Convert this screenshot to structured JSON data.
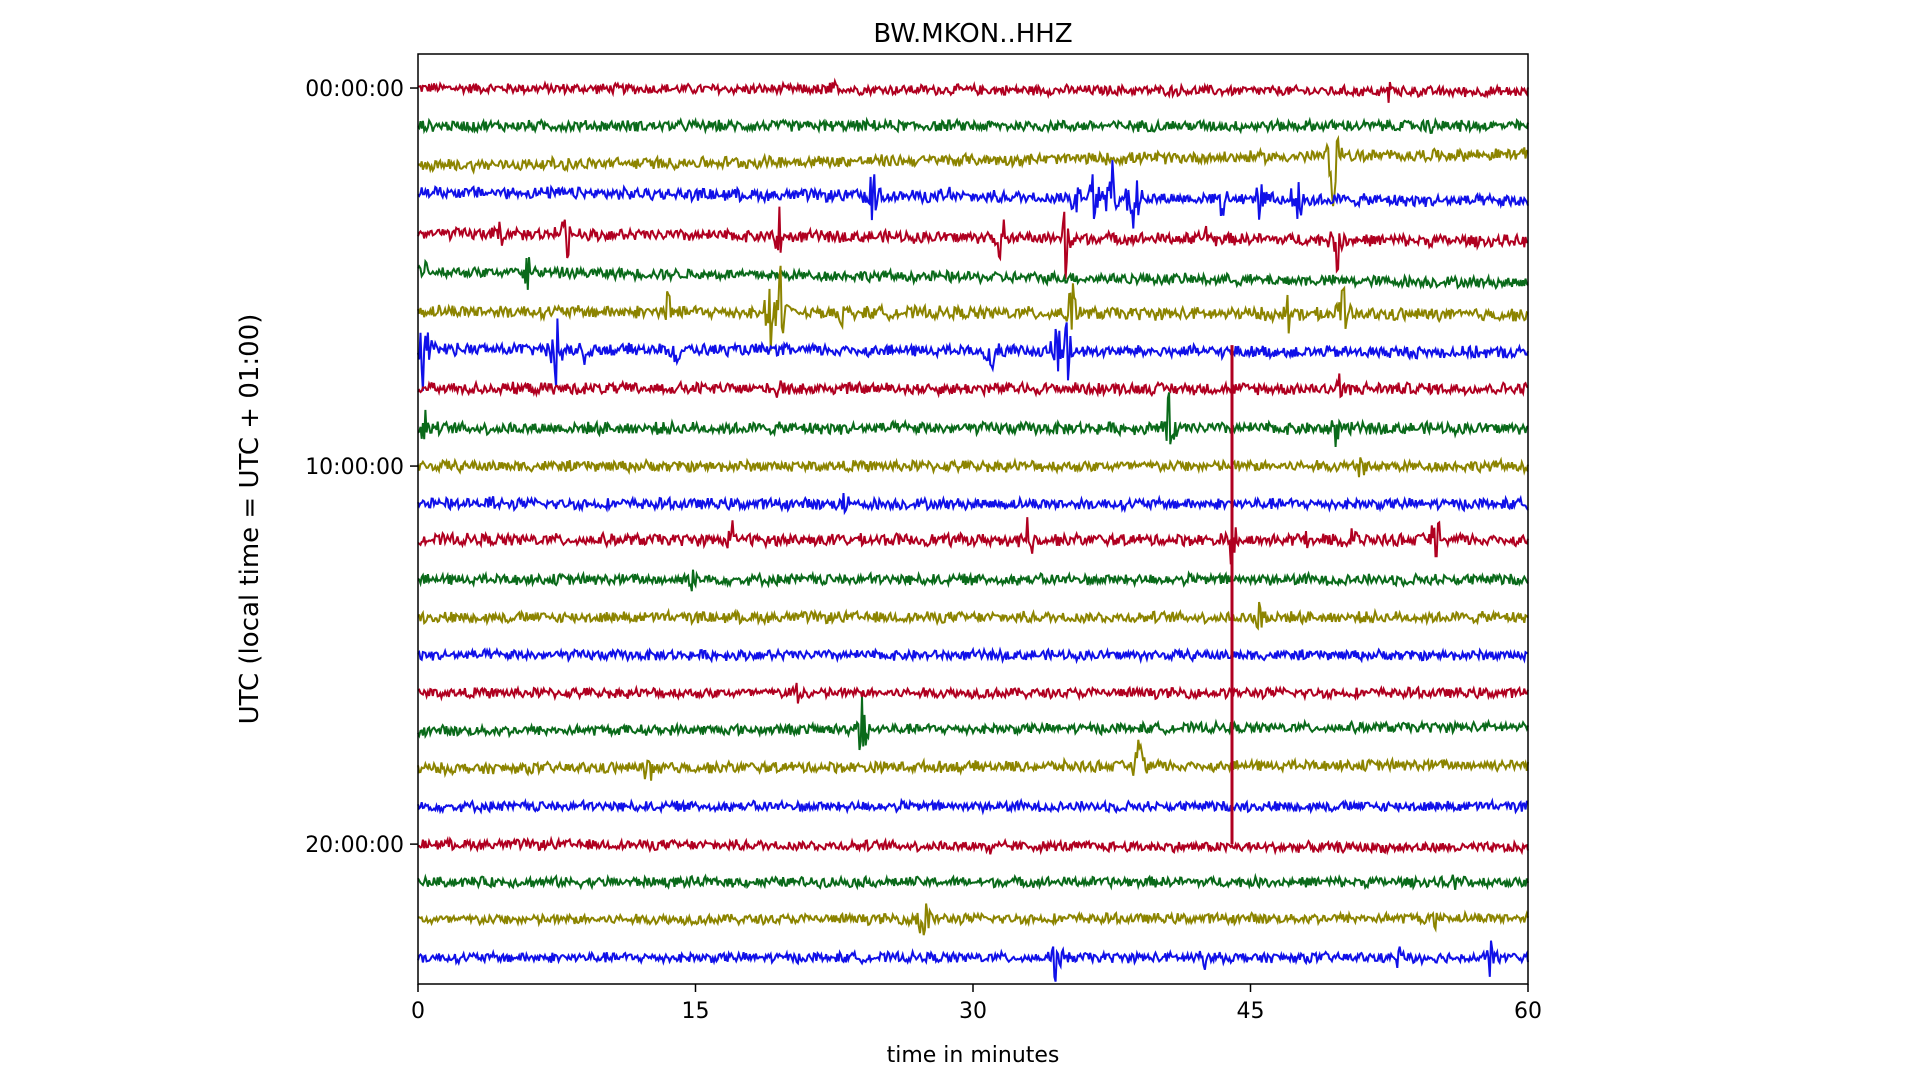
{
  "chart_data": {
    "type": "line",
    "title": "BW.MKON..HHZ",
    "xlabel": "time in minutes",
    "ylabel": "UTC (local time = UTC + 01:00)",
    "xlim": [
      0,
      60
    ],
    "x_ticks": [
      0,
      15,
      30,
      45,
      60
    ],
    "y_ticks": [
      {
        "hour": 0,
        "label": "00:00:00"
      },
      {
        "hour": 10,
        "label": "10:00:00"
      },
      {
        "hour": 20,
        "label": "20:00:00"
      }
    ],
    "ylim_hours": [
      -0.9,
      23.7
    ],
    "colors": [
      "#b00020",
      "#0a6a1a",
      "#8c8400",
      "#1010e8"
    ],
    "traces": [
      {
        "hour": 0,
        "color_index": 0,
        "offset": 0.0,
        "drift": -0.1,
        "noise": 0.12,
        "events": [
          {
            "minute": 22.4,
            "amp": 0.25
          },
          {
            "minute": 52.5,
            "amp": 0.35
          }
        ]
      },
      {
        "hour": 1,
        "color_index": 1,
        "offset": 0.0,
        "drift": 0.0,
        "noise": 0.13,
        "events": [
          {
            "minute": 55.0,
            "amp": 0.3
          }
        ]
      },
      {
        "hour": 2,
        "color_index": 2,
        "offset": -0.05,
        "drift": 0.3,
        "noise": 0.14,
        "events": [
          {
            "minute": 49.5,
            "amp": 1.6
          }
        ]
      },
      {
        "hour": 3,
        "color_index": 3,
        "offset": 0.25,
        "drift": -0.25,
        "noise": 0.14,
        "events": [
          {
            "minute": 24.6,
            "amp": 0.9
          },
          {
            "minute": 28.5,
            "amp": 0.5
          },
          {
            "minute": 35.5,
            "amp": 0.9
          },
          {
            "minute": 36.5,
            "amp": 1.0
          },
          {
            "minute": 37.5,
            "amp": 1.1
          },
          {
            "minute": 38.7,
            "amp": 1.3
          },
          {
            "minute": 43.5,
            "amp": 0.6
          },
          {
            "minute": 45.5,
            "amp": 0.8
          },
          {
            "minute": 47.5,
            "amp": 0.9
          }
        ]
      },
      {
        "hour": 4,
        "color_index": 0,
        "offset": 0.15,
        "drift": -0.2,
        "noise": 0.14,
        "events": [
          {
            "minute": 4.5,
            "amp": 0.5
          },
          {
            "minute": 8.0,
            "amp": 0.9
          },
          {
            "minute": 19.5,
            "amp": 0.8
          },
          {
            "minute": 31.5,
            "amp": 0.9
          },
          {
            "minute": 35.0,
            "amp": 1.2
          },
          {
            "minute": 42.5,
            "amp": 0.7
          },
          {
            "minute": 49.7,
            "amp": 1.0
          }
        ]
      },
      {
        "hour": 5,
        "color_index": 1,
        "offset": 0.15,
        "drift": -0.3,
        "noise": 0.13,
        "events": [
          {
            "minute": 6.0,
            "amp": 0.7
          },
          {
            "minute": 0.2,
            "amp": 0.5
          }
        ]
      },
      {
        "hour": 6,
        "color_index": 2,
        "offset": 0.1,
        "drift": -0.1,
        "noise": 0.15,
        "events": [
          {
            "minute": 13.5,
            "amp": 0.7
          },
          {
            "minute": 19.0,
            "amp": 1.3
          },
          {
            "minute": 19.6,
            "amp": 1.5
          },
          {
            "minute": 23.0,
            "amp": 0.5
          },
          {
            "minute": 35.3,
            "amp": 1.2
          },
          {
            "minute": 47.0,
            "amp": 0.7
          },
          {
            "minute": 50.0,
            "amp": 1.1
          }
        ]
      },
      {
        "hour": 7,
        "color_index": 3,
        "offset": 0.1,
        "drift": -0.1,
        "noise": 0.14,
        "events": [
          {
            "minute": 0.3,
            "amp": 1.6
          },
          {
            "minute": 7.5,
            "amp": 1.3
          },
          {
            "minute": 9.0,
            "amp": 0.6
          },
          {
            "minute": 14.0,
            "amp": 0.4
          },
          {
            "minute": 31.0,
            "amp": 0.9
          },
          {
            "minute": 34.5,
            "amp": 1.3
          },
          {
            "minute": 35.1,
            "amp": 1.2
          }
        ]
      },
      {
        "hour": 8,
        "color_index": 0,
        "offset": 0.05,
        "drift": 0.0,
        "noise": 0.14,
        "events": [
          {
            "minute": 19.5,
            "amp": 0.5
          },
          {
            "minute": 49.8,
            "amp": 0.5
          }
        ]
      },
      {
        "hour": 9,
        "color_index": 1,
        "offset": 0.0,
        "drift": 0.0,
        "noise": 0.14,
        "events": [
          {
            "minute": 0.4,
            "amp": 0.5
          },
          {
            "minute": 40.5,
            "amp": 1.3
          },
          {
            "minute": 49.6,
            "amp": 0.6
          }
        ]
      },
      {
        "hour": 10,
        "color_index": 2,
        "offset": 0.0,
        "drift": 0.0,
        "noise": 0.13,
        "events": [
          {
            "minute": 51.0,
            "amp": 0.3
          }
        ]
      },
      {
        "hour": 11,
        "color_index": 3,
        "offset": 0.0,
        "drift": 0.0,
        "noise": 0.13,
        "events": [
          {
            "minute": 4.0,
            "amp": 0.3
          },
          {
            "minute": 23.0,
            "amp": 0.3
          }
        ]
      },
      {
        "hour": 12,
        "color_index": 0,
        "offset": 0.05,
        "drift": 0.0,
        "noise": 0.14,
        "events": [
          {
            "minute": 17.0,
            "amp": 0.6
          },
          {
            "minute": 33.0,
            "amp": 0.7
          },
          {
            "minute": 44.0,
            "amp": 1.0
          },
          {
            "minute": 48.0,
            "amp": 0.5
          },
          {
            "minute": 50.5,
            "amp": 0.5
          },
          {
            "minute": 55.0,
            "amp": 1.0
          }
        ]
      },
      {
        "hour": 13,
        "color_index": 1,
        "offset": 0.0,
        "drift": 0.0,
        "noise": 0.13,
        "events": [
          {
            "minute": 14.8,
            "amp": 0.5
          }
        ]
      },
      {
        "hour": 14,
        "color_index": 2,
        "offset": 0.0,
        "drift": 0.0,
        "noise": 0.13,
        "events": [
          {
            "minute": 45.5,
            "amp": 0.8
          }
        ]
      },
      {
        "hour": 15,
        "color_index": 3,
        "offset": 0.0,
        "drift": 0.0,
        "noise": 0.12,
        "events": []
      },
      {
        "hour": 16,
        "color_index": 0,
        "offset": 0.0,
        "drift": 0.0,
        "noise": 0.12,
        "events": [
          {
            "minute": 20.5,
            "amp": 0.3
          }
        ]
      },
      {
        "hour": 17,
        "color_index": 1,
        "offset": 0.0,
        "drift": 0.1,
        "noise": 0.12,
        "events": [
          {
            "minute": 24.0,
            "amp": 1.2
          }
        ]
      },
      {
        "hour": 18,
        "color_index": 2,
        "offset": 0.0,
        "drift": 0.1,
        "noise": 0.13,
        "events": [
          {
            "minute": 12.5,
            "amp": 0.5
          },
          {
            "minute": 39.0,
            "amp": 0.9
          }
        ]
      },
      {
        "hour": 19,
        "color_index": 3,
        "offset": 0.0,
        "drift": 0.0,
        "noise": 0.12,
        "events": []
      },
      {
        "hour": 20,
        "color_index": 0,
        "offset": 0.0,
        "drift": -0.1,
        "noise": 0.12,
        "events": [
          {
            "minute": 31.0,
            "amp": 0.3
          }
        ]
      },
      {
        "hour": 21,
        "color_index": 1,
        "offset": 0.0,
        "drift": 0.0,
        "noise": 0.12,
        "events": [
          {
            "minute": 56.0,
            "amp": 0.3
          }
        ]
      },
      {
        "hour": 22,
        "color_index": 2,
        "offset": 0.0,
        "drift": 0.05,
        "noise": 0.12,
        "events": [
          {
            "minute": 27.3,
            "amp": 0.9
          },
          {
            "minute": 55.0,
            "amp": 0.3
          }
        ]
      },
      {
        "hour": 23,
        "color_index": 3,
        "offset": 0.0,
        "drift": 0.0,
        "noise": 0.12,
        "events": [
          {
            "minute": 34.5,
            "amp": 0.9
          },
          {
            "minute": 42.5,
            "amp": 0.3
          },
          {
            "minute": 53.0,
            "amp": 0.3
          },
          {
            "minute": 58.0,
            "amp": 0.7
          }
        ]
      }
    ],
    "spanning_events": [
      {
        "minute": 44.0,
        "from_hour": 6.8,
        "to_hour": 20.0,
        "color_index": 0
      }
    ]
  }
}
